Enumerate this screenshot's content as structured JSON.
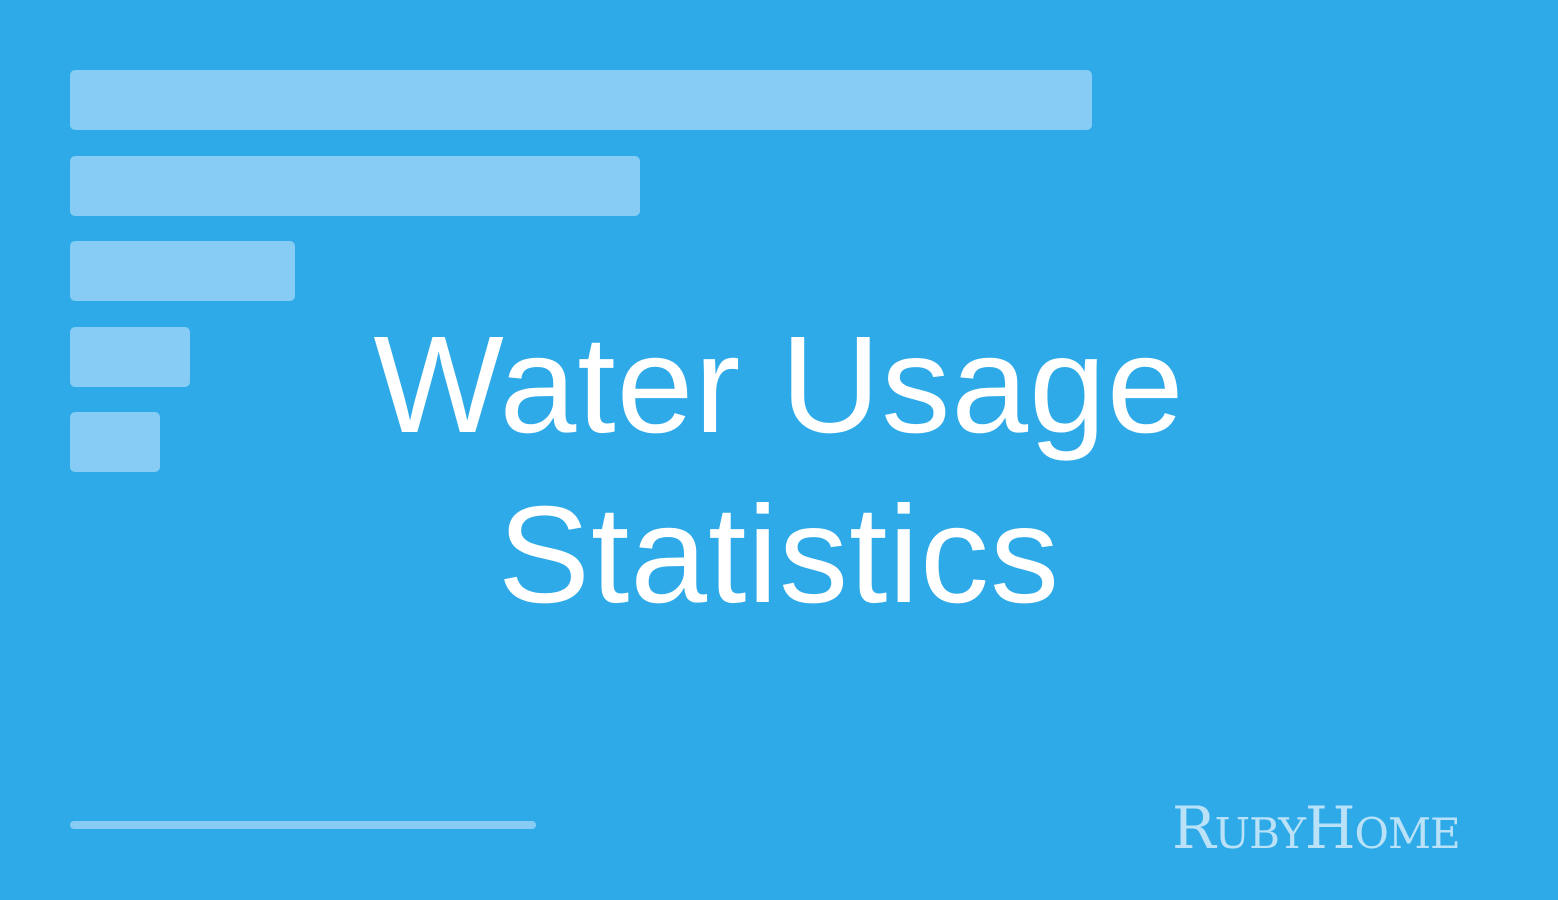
{
  "colors": {
    "background": "#2faae8",
    "bars": "#86ccf4",
    "title": "#ffffff",
    "logo": "#b9e2f8"
  },
  "bars": {
    "relative_lengths": [
      1.0,
      0.558,
      0.22,
      0.117,
      0.088
    ]
  },
  "title": {
    "line1": "Water Usage",
    "line2": "Statistics"
  },
  "logo": {
    "text": "RUBYHOME",
    "part1_big": "R",
    "part1_small": "UBY",
    "part2_big": "H",
    "part2_small": "OME"
  }
}
